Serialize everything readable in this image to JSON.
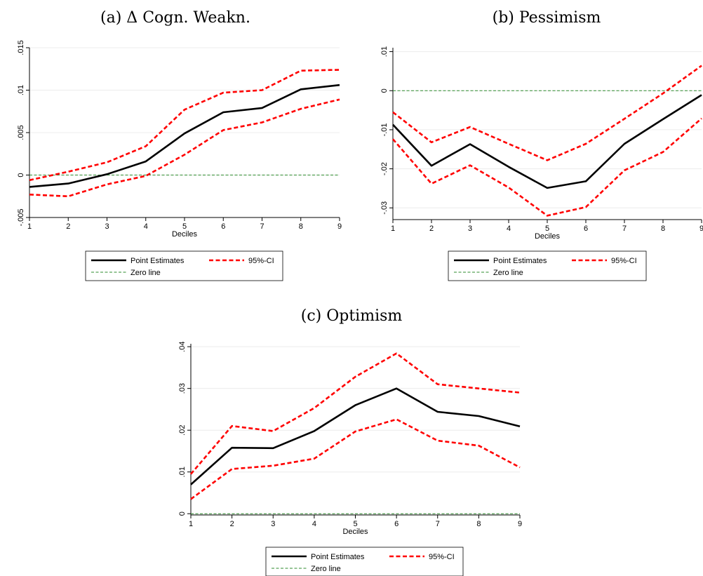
{
  "chart_data": [
    {
      "type": "line",
      "title": "(a) Δ Cogn. Weakn.",
      "xlabel": "Deciles",
      "ylabel": "",
      "x": [
        1,
        2,
        3,
        4,
        5,
        6,
        7,
        8,
        9
      ],
      "xlim": [
        1,
        9
      ],
      "ylim": [
        -0.005,
        0.015
      ],
      "yticks": [
        -0.005,
        0,
        0.005,
        0.01,
        0.015
      ],
      "ytick_labels": [
        "-.005",
        "0",
        ".005",
        ".01",
        ".015"
      ],
      "grid": true,
      "series": [
        {
          "name": "Point Estimates",
          "color": "#000000",
          "style": "solid",
          "values": [
            -0.0014,
            -0.001,
            0.0001,
            0.0016,
            0.0049,
            0.0074,
            0.0079,
            0.0101,
            0.0106
          ]
        },
        {
          "name": "95%-CI",
          "color": "#ff0000",
          "style": "dashed",
          "values": [
            -0.0006,
            0.0004,
            0.0015,
            0.0034,
            0.0077,
            0.0097,
            0.01,
            0.0123,
            0.0124
          ]
        },
        {
          "name": "",
          "color": "#ff0000",
          "style": "dashed",
          "values": [
            -0.0023,
            -0.0025,
            -0.0011,
            -0.0001,
            0.0024,
            0.0053,
            0.0062,
            0.0078,
            0.0089
          ]
        },
        {
          "name": "Zero line",
          "color": "#2e8b2e",
          "style": "dashed-thin",
          "values": [
            0,
            0,
            0,
            0,
            0,
            0,
            0,
            0,
            0
          ]
        }
      ],
      "legend": {
        "position": "bottom",
        "entries": [
          "Point Estimates",
          "95%-CI",
          "Zero line"
        ]
      }
    },
    {
      "type": "line",
      "title": "(b) Pessimism",
      "xlabel": "Deciles",
      "ylabel": "",
      "x": [
        1,
        2,
        3,
        4,
        5,
        6,
        7,
        8,
        9
      ],
      "xlim": [
        1,
        9
      ],
      "ylim": [
        -0.033,
        0.011
      ],
      "yticks": [
        -0.03,
        -0.02,
        -0.01,
        0,
        0.01
      ],
      "ytick_labels": [
        "-.03",
        "-.02",
        "-.01",
        "0",
        ".01"
      ],
      "grid": true,
      "series": [
        {
          "name": "Point Estimates",
          "color": "#000000",
          "style": "solid",
          "values": [
            -0.0087,
            -0.0192,
            -0.0137,
            -0.0195,
            -0.0249,
            -0.0232,
            -0.0136,
            -0.0073,
            -0.0011
          ]
        },
        {
          "name": "95%-CI",
          "color": "#ff0000",
          "style": "dashed",
          "values": [
            -0.0055,
            -0.0132,
            -0.0093,
            -0.0136,
            -0.0178,
            -0.0136,
            -0.0072,
            -0.0007,
            0.0064
          ]
        },
        {
          "name": "",
          "color": "#ff0000",
          "style": "dashed",
          "values": [
            -0.0124,
            -0.0238,
            -0.0191,
            -0.0248,
            -0.032,
            -0.0298,
            -0.0204,
            -0.0157,
            -0.0071
          ]
        },
        {
          "name": "Zero line",
          "color": "#2e8b2e",
          "style": "dashed-thin",
          "values": [
            0,
            0,
            0,
            0,
            0,
            0,
            0,
            0,
            0
          ]
        }
      ],
      "legend": {
        "position": "bottom",
        "entries": [
          "Point Estimates",
          "95%-CI",
          "Zero line"
        ]
      }
    },
    {
      "type": "line",
      "title": "(c) Optimism",
      "xlabel": "Deciles",
      "ylabel": "",
      "x": [
        1,
        2,
        3,
        4,
        5,
        6,
        7,
        8,
        9
      ],
      "xlim": [
        1,
        9
      ],
      "ylim": [
        -0.0003,
        0.0407
      ],
      "yticks": [
        0,
        0.01,
        0.02,
        0.03,
        0.04
      ],
      "ytick_labels": [
        "0",
        ".01",
        ".02",
        ".03",
        ".04"
      ],
      "grid": true,
      "series": [
        {
          "name": "Point Estimates",
          "color": "#000000",
          "style": "solid",
          "values": [
            0.007,
            0.0158,
            0.0157,
            0.0198,
            0.026,
            0.03,
            0.0244,
            0.0234,
            0.0209
          ]
        },
        {
          "name": "95%-CI",
          "color": "#ff0000",
          "style": "dashed",
          "values": [
            0.0095,
            0.021,
            0.0198,
            0.0253,
            0.0328,
            0.0384,
            0.031,
            0.03,
            0.029
          ]
        },
        {
          "name": "",
          "color": "#ff0000",
          "style": "dashed",
          "values": [
            0.0035,
            0.0107,
            0.0115,
            0.0132,
            0.0197,
            0.0226,
            0.0175,
            0.0163,
            0.0111
          ]
        },
        {
          "name": "Zero line",
          "color": "#2e8b2e",
          "style": "dashed-thin",
          "values": [
            0,
            0,
            0,
            0,
            0,
            0,
            0,
            0,
            0
          ]
        }
      ],
      "legend": {
        "position": "bottom",
        "entries": [
          "Point Estimates",
          "95%-CI",
          "Zero line"
        ]
      }
    }
  ]
}
